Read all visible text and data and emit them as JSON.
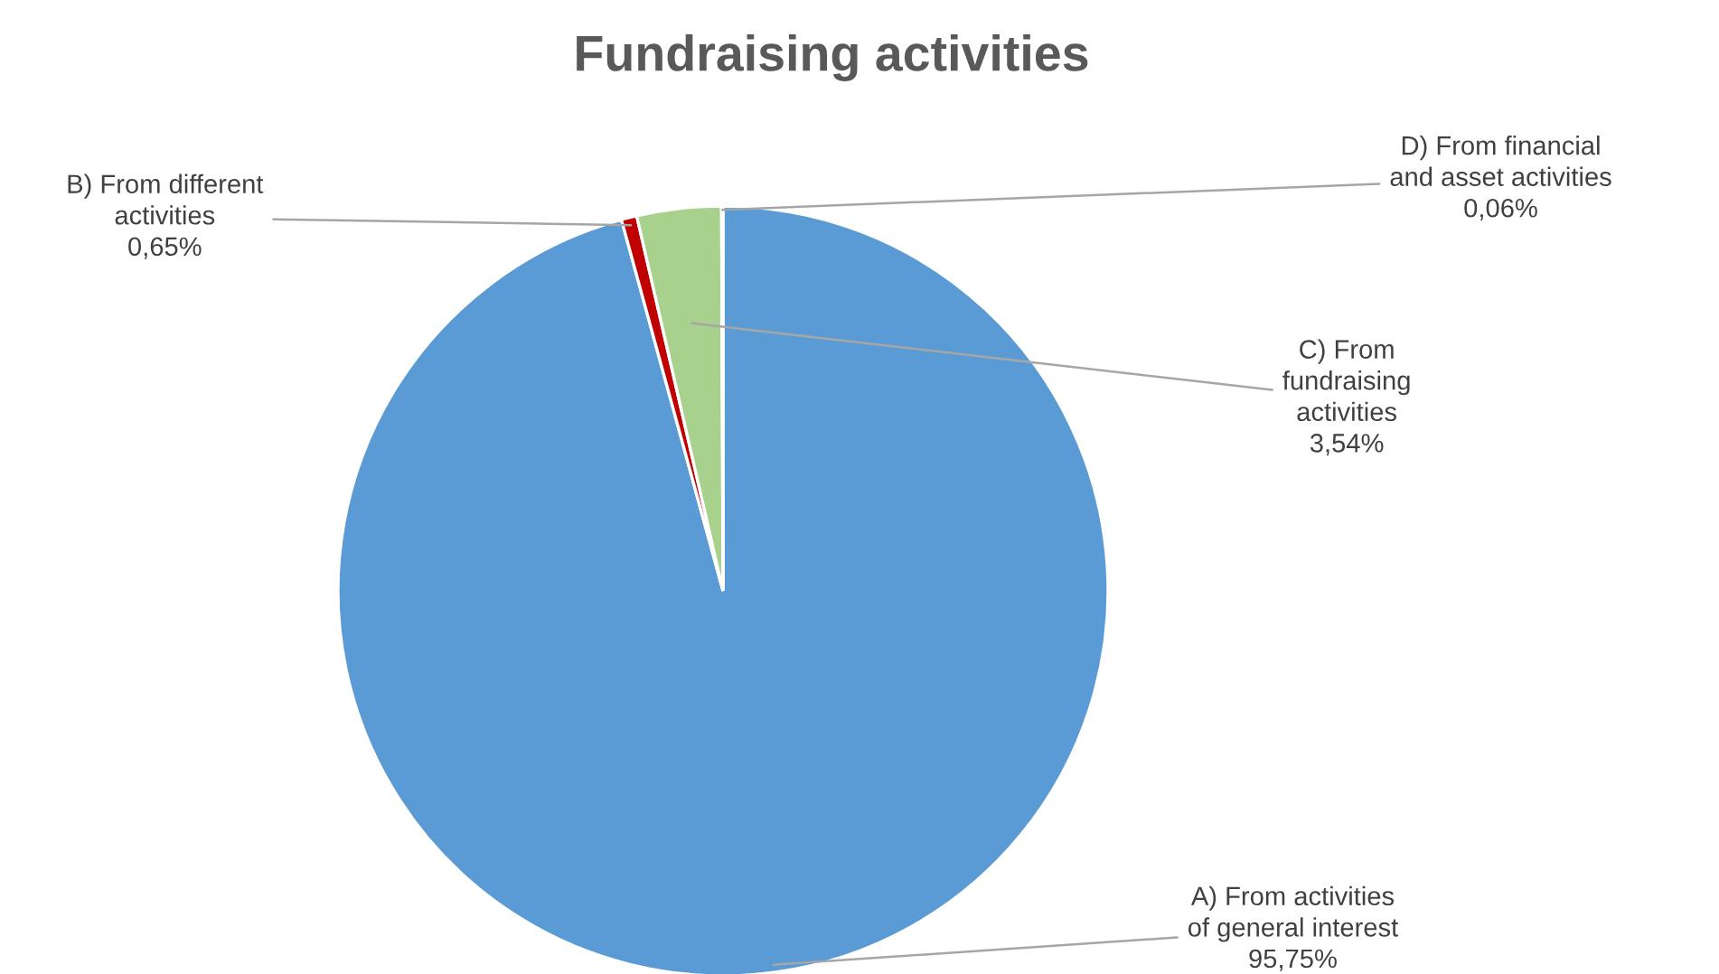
{
  "chart_data": {
    "type": "pie",
    "title": "Fundraising activities",
    "categories": [
      "A) From activities\nof general interest",
      "B) From different\nactivities",
      "C) From\nfundraising\nactivities",
      "D) From financial\nand asset activities"
    ],
    "values": [
      95.75,
      0.65,
      3.54,
      0.06
    ],
    "colors": [
      "#5b9bd5",
      "#c00000",
      "#a9d18e",
      "#ffc000"
    ],
    "value_labels": [
      "95,75%",
      "0,65%",
      "3,54%",
      "0,06%"
    ],
    "legend": false
  }
}
